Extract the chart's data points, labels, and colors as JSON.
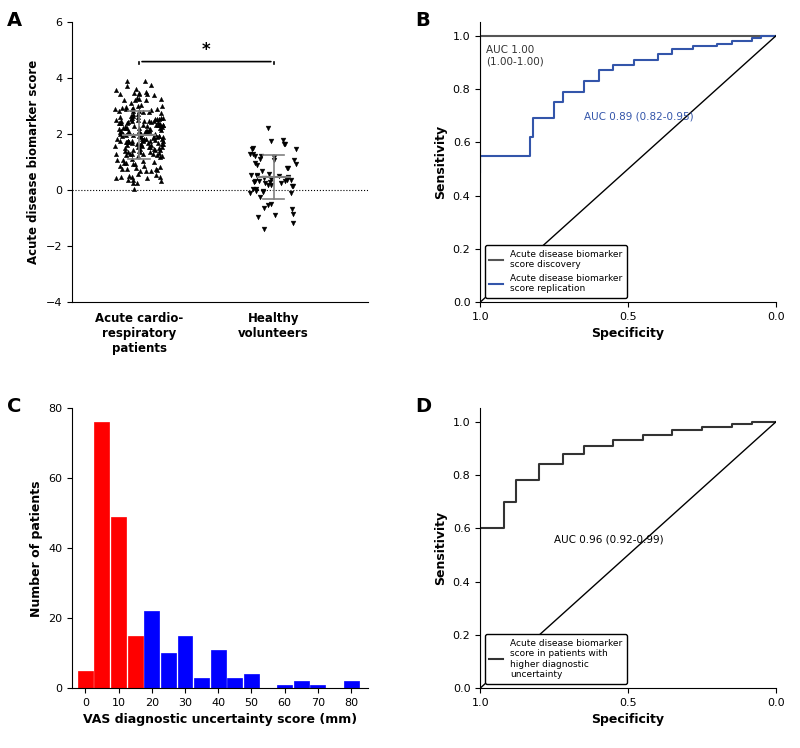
{
  "panel_A": {
    "group1_name": "Acute cardio-\nrespiratory\npatients",
    "group2_name": "Healthy\nvolunteers",
    "group1_mean": 2.0,
    "group1_sd": 0.85,
    "group1_min": -0.7,
    "group1_max": 4.1,
    "group1_n": 200,
    "group2_mean": 0.5,
    "group2_sd": 1.0,
    "group2_min": -2.1,
    "group2_max": 3.0,
    "group2_n": 60,
    "ylabel": "Acute disease biomarker score",
    "ylim": [
      -4,
      6
    ],
    "yticks": [
      -4,
      -2,
      0,
      2,
      4,
      6
    ],
    "significance_text": "*"
  },
  "panel_B": {
    "xlabel": "Specificity",
    "ylabel": "Sensitivity",
    "auc1_label": "AUC 1.00\n(1.00-1.00)",
    "auc2_label": "AUC 0.89 (0.82-0.95)",
    "legend1": "Acute disease biomarker\nscore discovery",
    "legend2": "Acute disease biomarker\nscore replication",
    "color_discovery": "#555555",
    "color_replication": "#3355aa",
    "yticks": [
      0.0,
      0.2,
      0.4,
      0.6,
      0.8,
      1.0
    ],
    "xticks": [
      1.0,
      0.5,
      0.0
    ]
  },
  "panel_C": {
    "xlabel": "VAS diagnostic uncertainty score (mm)",
    "ylabel": "Number of patients",
    "bar_positions": [
      0,
      5,
      10,
      15,
      20,
      25,
      30,
      35,
      40,
      45,
      50,
      55,
      60,
      65,
      70,
      75,
      80
    ],
    "bar_heights": [
      5,
      76,
      49,
      15,
      22,
      10,
      15,
      3,
      11,
      3,
      4,
      0,
      1,
      2,
      1,
      0,
      2
    ],
    "bar_colors": [
      "red",
      "red",
      "red",
      "red",
      "blue",
      "blue",
      "blue",
      "blue",
      "blue",
      "blue",
      "blue",
      "blue",
      "blue",
      "blue",
      "blue",
      "blue",
      "blue"
    ],
    "xticks": [
      0,
      10,
      20,
      30,
      40,
      50,
      60,
      70,
      80
    ],
    "ylim": [
      0,
      80
    ],
    "yticks": [
      0,
      20,
      40,
      60,
      80
    ]
  },
  "panel_D": {
    "xlabel": "Specificity",
    "ylabel": "Sensitivity",
    "auc_label": "AUC 0.96 (0.92-0.99)",
    "legend": "Acute disease biomarker\nscore in patients with\nhigher diagnostic\nuncertainty",
    "color": "#333333",
    "yticks": [
      0.0,
      0.2,
      0.4,
      0.6,
      0.8,
      1.0
    ],
    "xticks": [
      1.0,
      0.5,
      0.0
    ]
  },
  "background_color": "#ffffff",
  "panel_label_fontsize": 14
}
